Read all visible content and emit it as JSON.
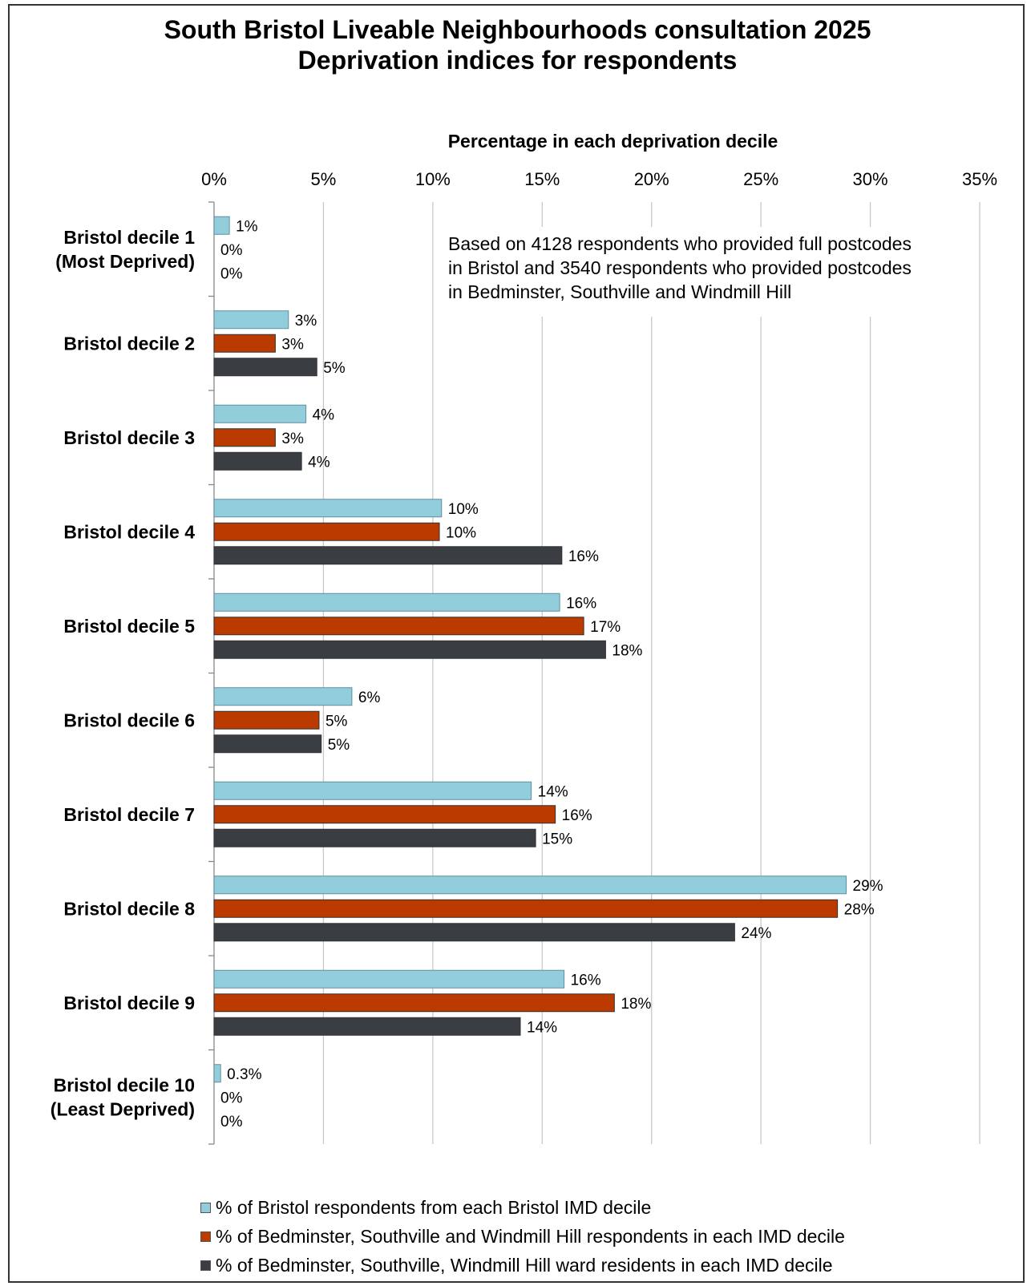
{
  "chart_data": {
    "type": "bar",
    "orientation": "horizontal",
    "title_line1": "South Bristol Liveable Neighbourhoods consultation 2025",
    "title_line2": "Deprivation indices for respondents",
    "xlabel": "Percentage in each deprivation decile",
    "xlim": [
      0,
      35
    ],
    "xticks": [
      "0%",
      "5%",
      "10%",
      "15%",
      "20%",
      "25%",
      "30%",
      "35%"
    ],
    "xtick_values": [
      0,
      5,
      10,
      15,
      20,
      25,
      30,
      35
    ],
    "grid": true,
    "legend_placement": "bottom",
    "annotation": [
      "Based on 4128 respondents who provided full postcodes",
      "in Bristol and 3540 respondents who provided postcodes",
      "in Bedminster, Southville and Windmill Hill"
    ],
    "categories": [
      [
        "Bristol decile 1",
        "(Most Deprived)"
      ],
      [
        "Bristol decile 2"
      ],
      [
        "Bristol decile 3"
      ],
      [
        "Bristol decile 4"
      ],
      [
        "Bristol decile 5"
      ],
      [
        "Bristol decile 6"
      ],
      [
        "Bristol decile 7"
      ],
      [
        "Bristol decile 8"
      ],
      [
        "Bristol decile 9"
      ],
      [
        "Bristol decile 10",
        "(Least Deprived)"
      ]
    ],
    "series": [
      {
        "name": "% of Bristol respondents from each Bristol IMD decile",
        "color": "#92CDDC",
        "values": [
          0.7,
          3.4,
          4.2,
          10.4,
          15.8,
          6.3,
          14.5,
          28.9,
          16.0,
          0.3
        ],
        "labels": [
          "1%",
          "3%",
          "4%",
          "10%",
          "16%",
          "6%",
          "14%",
          "29%",
          "16%",
          "0.3%"
        ]
      },
      {
        "name": "% of Bedminster, Southville and Windmill Hill respondents in each IMD decile",
        "color": "#BB3A00",
        "values": [
          0,
          2.8,
          2.8,
          10.3,
          16.9,
          4.8,
          15.6,
          28.5,
          18.3,
          0
        ],
        "labels": [
          "0%",
          "3%",
          "3%",
          "10%",
          "17%",
          "5%",
          "16%",
          "28%",
          "18%",
          "0%"
        ]
      },
      {
        "name": "% of Bedminster, Southville, Windmill Hill ward residents in each IMD decile",
        "color": "#3A3E42",
        "values": [
          0,
          4.7,
          4.0,
          15.9,
          17.9,
          4.9,
          14.7,
          23.8,
          14.0,
          0
        ],
        "labels": [
          "0%",
          "5%",
          "4%",
          "16%",
          "18%",
          "5%",
          "15%",
          "24%",
          "14%",
          "0%"
        ]
      }
    ]
  }
}
